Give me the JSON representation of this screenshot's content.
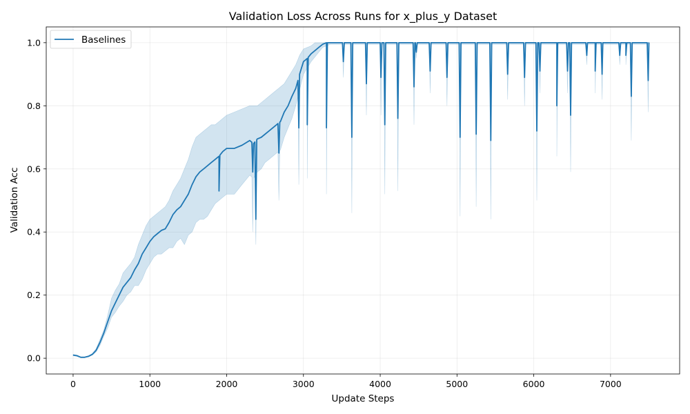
{
  "chart_data": {
    "type": "line",
    "title": "Validation Loss Across Runs for x_plus_y Dataset",
    "xlabel": "Update Steps",
    "ylabel": "Validation Acc",
    "xlim": [
      -350,
      7900
    ],
    "ylim": [
      -0.05,
      1.05
    ],
    "xticks": [
      0,
      1000,
      2000,
      3000,
      4000,
      5000,
      6000,
      7000
    ],
    "yticks": [
      0.0,
      0.2,
      0.4,
      0.6,
      0.8,
      1.0
    ],
    "ytick_labels": [
      "0.0",
      "0.2",
      "0.4",
      "0.6",
      "0.8",
      "1.0"
    ],
    "grid": true,
    "legend_position": "top-left",
    "colors": {
      "line": "#1f77b4",
      "band": "#1f77b4"
    },
    "series": [
      {
        "name": "Baselines",
        "x": [
          0,
          50,
          100,
          150,
          200,
          250,
          300,
          350,
          400,
          450,
          500,
          550,
          600,
          650,
          700,
          750,
          800,
          850,
          900,
          950,
          1000,
          1050,
          1100,
          1150,
          1200,
          1250,
          1300,
          1350,
          1400,
          1450,
          1500,
          1550,
          1600,
          1650,
          1700,
          1750,
          1800,
          1850,
          1900,
          1950,
          2000,
          2100,
          2200,
          2300,
          2350,
          2400,
          2450,
          2500,
          2550,
          2600,
          2650,
          2700,
          2750,
          2800,
          2850,
          2900,
          2950,
          3000,
          3050,
          3100,
          3150,
          3200,
          3250,
          3300,
          3350,
          3400,
          3450,
          3500
        ],
        "y": [
          0.01,
          0.008,
          0.003,
          0.003,
          0.006,
          0.012,
          0.025,
          0.05,
          0.08,
          0.115,
          0.15,
          0.175,
          0.2,
          0.225,
          0.24,
          0.255,
          0.28,
          0.3,
          0.33,
          0.35,
          0.37,
          0.385,
          0.395,
          0.405,
          0.41,
          0.43,
          0.455,
          0.47,
          0.48,
          0.5,
          0.52,
          0.55,
          0.575,
          0.59,
          0.6,
          0.61,
          0.62,
          0.63,
          0.64,
          0.655,
          0.665,
          0.665,
          0.675,
          0.69,
          0.68,
          0.695,
          0.7,
          0.71,
          0.72,
          0.73,
          0.74,
          0.75,
          0.78,
          0.8,
          0.83,
          0.855,
          0.9,
          0.94,
          0.95,
          0.965,
          0.975,
          0.985,
          0.995,
          1.0,
          1.0,
          1.0,
          1.0,
          1.0
        ],
        "lower": [
          0.008,
          0.006,
          0.002,
          0.002,
          0.004,
          0.01,
          0.02,
          0.04,
          0.07,
          0.095,
          0.13,
          0.145,
          0.165,
          0.18,
          0.2,
          0.21,
          0.23,
          0.23,
          0.25,
          0.28,
          0.3,
          0.32,
          0.33,
          0.33,
          0.34,
          0.35,
          0.35,
          0.37,
          0.38,
          0.36,
          0.39,
          0.4,
          0.43,
          0.44,
          0.44,
          0.45,
          0.47,
          0.49,
          0.5,
          0.51,
          0.52,
          0.52,
          0.55,
          0.58,
          0.57,
          0.59,
          0.6,
          0.62,
          0.63,
          0.64,
          0.65,
          0.66,
          0.7,
          0.73,
          0.76,
          0.8,
          0.85,
          0.9,
          0.92,
          0.94,
          0.955,
          0.97,
          0.985,
          0.99,
          0.995,
          0.995,
          0.995,
          0.995
        ],
        "upper": [
          0.012,
          0.01,
          0.004,
          0.004,
          0.008,
          0.015,
          0.03,
          0.06,
          0.09,
          0.135,
          0.19,
          0.215,
          0.235,
          0.27,
          0.285,
          0.3,
          0.32,
          0.36,
          0.39,
          0.42,
          0.44,
          0.45,
          0.46,
          0.47,
          0.48,
          0.5,
          0.53,
          0.55,
          0.57,
          0.6,
          0.63,
          0.67,
          0.7,
          0.71,
          0.72,
          0.73,
          0.74,
          0.74,
          0.75,
          0.76,
          0.77,
          0.78,
          0.79,
          0.8,
          0.8,
          0.8,
          0.81,
          0.82,
          0.83,
          0.84,
          0.85,
          0.86,
          0.87,
          0.89,
          0.91,
          0.93,
          0.96,
          0.98,
          0.985,
          0.99,
          1.0,
          1.0,
          1.0,
          1.0,
          1.0,
          1.0,
          1.0,
          1.0
        ],
        "end_x": 7500,
        "dips": [
          {
            "x": 1900,
            "y": 0.53,
            "lower": 0.5
          },
          {
            "x": 2340,
            "y": 0.59,
            "lower": 0.4
          },
          {
            "x": 2380,
            "y": 0.44,
            "lower": 0.36
          },
          {
            "x": 2680,
            "y": 0.65,
            "lower": 0.5
          },
          {
            "x": 2940,
            "y": 0.73,
            "lower": 0.55
          },
          {
            "x": 3050,
            "y": 0.74,
            "lower": 0.57
          },
          {
            "x": 3300,
            "y": 0.73,
            "lower": 0.52
          },
          {
            "x": 3520,
            "y": 0.94,
            "lower": 0.89
          },
          {
            "x": 3630,
            "y": 0.7,
            "lower": 0.46
          },
          {
            "x": 3820,
            "y": 0.87,
            "lower": 0.77
          },
          {
            "x": 4010,
            "y": 0.89,
            "lower": 0.77
          },
          {
            "x": 4060,
            "y": 0.74,
            "lower": 0.52
          },
          {
            "x": 4230,
            "y": 0.76,
            "lower": 0.53
          },
          {
            "x": 4440,
            "y": 0.86,
            "lower": 0.74
          },
          {
            "x": 4470,
            "y": 0.97,
            "lower": 0.95
          },
          {
            "x": 4650,
            "y": 0.91,
            "lower": 0.84
          },
          {
            "x": 4870,
            "y": 0.89,
            "lower": 0.8
          },
          {
            "x": 5040,
            "y": 0.7,
            "lower": 0.45
          },
          {
            "x": 5250,
            "y": 0.71,
            "lower": 0.48
          },
          {
            "x": 5440,
            "y": 0.69,
            "lower": 0.44
          },
          {
            "x": 5660,
            "y": 0.9,
            "lower": 0.82
          },
          {
            "x": 5880,
            "y": 0.89,
            "lower": 0.8
          },
          {
            "x": 6040,
            "y": 0.72,
            "lower": 0.5
          },
          {
            "x": 6080,
            "y": 0.91,
            "lower": 0.84
          },
          {
            "x": 6300,
            "y": 0.8,
            "lower": 0.64
          },
          {
            "x": 6440,
            "y": 0.91,
            "lower": 0.84
          },
          {
            "x": 6480,
            "y": 0.77,
            "lower": 0.59
          },
          {
            "x": 6690,
            "y": 0.96,
            "lower": 0.93
          },
          {
            "x": 6800,
            "y": 0.91,
            "lower": 0.84
          },
          {
            "x": 6890,
            "y": 0.9,
            "lower": 0.82
          },
          {
            "x": 7120,
            "y": 0.96,
            "lower": 0.93
          },
          {
            "x": 7200,
            "y": 0.96,
            "lower": 0.93
          },
          {
            "x": 7270,
            "y": 0.83,
            "lower": 0.69
          },
          {
            "x": 7490,
            "y": 0.88,
            "lower": 0.78
          }
        ]
      }
    ]
  }
}
